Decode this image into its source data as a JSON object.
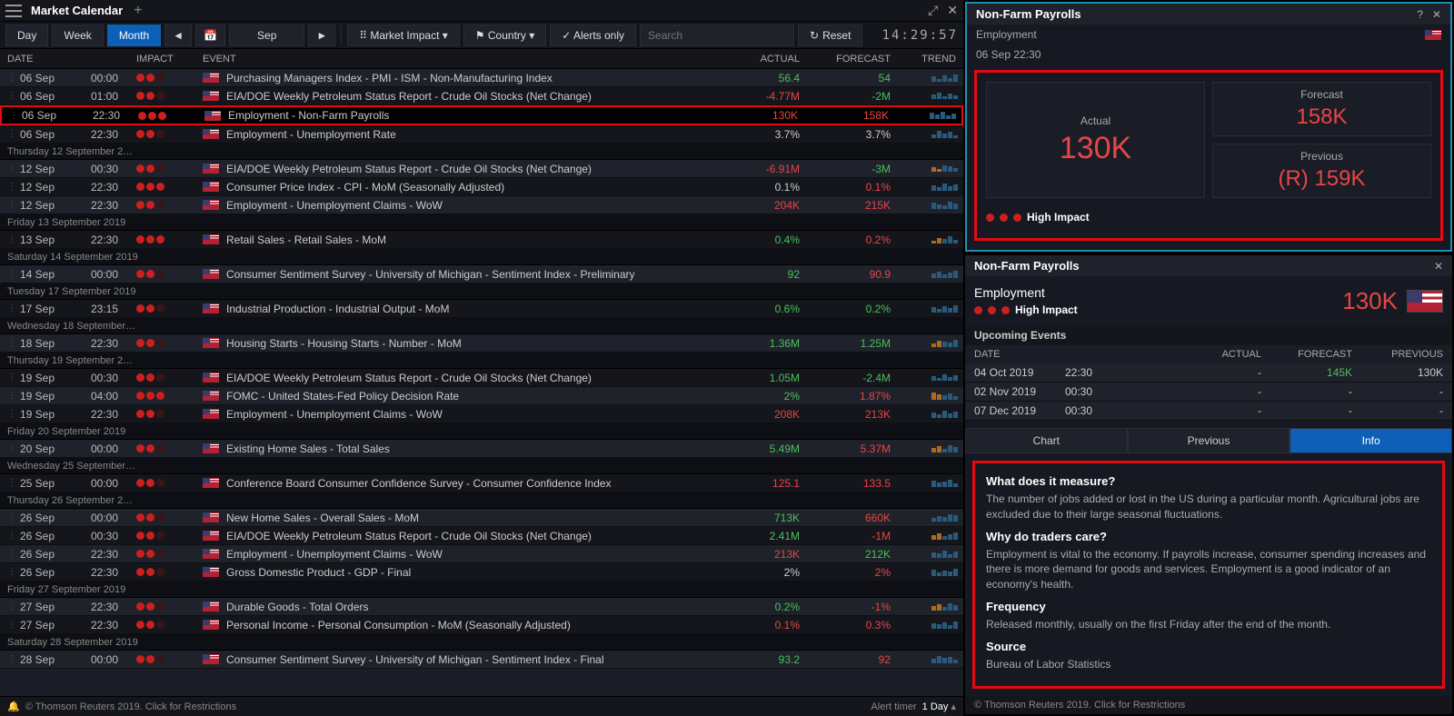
{
  "titlebar": {
    "title": "Market Calendar"
  },
  "toolbar": {
    "day": "Day",
    "week": "Week",
    "month": "Month",
    "monthval": "Sep",
    "impact": "Market Impact",
    "country": "Country",
    "alerts": "Alerts only",
    "search_ph": "Search",
    "reset": "Reset",
    "clock": "14:29:57"
  },
  "thead": {
    "date": "DATE",
    "impact": "IMPACT",
    "event": "EVENT",
    "actual": "ACTUAL",
    "forecast": "FORECAST",
    "trend": "TREND"
  },
  "rows": [
    {
      "date": "06 Sep",
      "time": "00:00",
      "impact": 2,
      "event": "Purchasing Managers Index - PMI - ISM - Non-Manufacturing Index",
      "actual": "56.4",
      "ac": "pos",
      "forecast": "54",
      "fc": "pos",
      "bars": [
        6,
        3,
        7,
        4,
        8
      ],
      "odd": true
    },
    {
      "date": "06 Sep",
      "time": "01:00",
      "impact": 2,
      "event": "EIA/DOE Weekly Petroleum Status Report - Crude Oil Stocks (Net Change)",
      "actual": "-4.77M",
      "ac": "neg",
      "forecast": "-2M",
      "fc": "pos",
      "bars": [
        5,
        7,
        3,
        6,
        4
      ],
      "odd": false
    },
    {
      "date": "06 Sep",
      "time": "22:30",
      "impact": 3,
      "event": "Employment - Non-Farm Payrolls",
      "actual": "130K",
      "ac": "neg",
      "forecast": "158K",
      "fc": "neg",
      "bars": [
        7,
        5,
        8,
        4,
        6
      ],
      "highlight": true
    },
    {
      "date": "06 Sep",
      "time": "22:30",
      "impact": 2,
      "event": "Employment - Unemployment Rate",
      "actual": "3.7%",
      "ac": "",
      "forecast": "3.7%",
      "fc": "",
      "bars": [
        4,
        8,
        5,
        7,
        3
      ],
      "odd": false
    },
    {
      "dayheader": "Thursday 12 September 2…"
    },
    {
      "date": "12 Sep",
      "time": "00:30",
      "impact": 2,
      "event": "EIA/DOE Weekly Petroleum Status Report - Crude Oil Stocks (Net Change)",
      "actual": "-6.91M",
      "ac": "neg",
      "forecast": "-3M",
      "fc": "pos",
      "bars": [
        5,
        3,
        7,
        6,
        4
      ],
      "odd": true,
      "obar": true
    },
    {
      "date": "12 Sep",
      "time": "22:30",
      "impact": 3,
      "event": "Consumer Price Index - CPI - MoM (Seasonally Adjusted)",
      "actual": "0.1%",
      "ac": "",
      "forecast": "0.1%",
      "fc": "neg",
      "bars": [
        6,
        4,
        8,
        5,
        7
      ],
      "odd": false
    },
    {
      "date": "12 Sep",
      "time": "22:30",
      "impact": 2,
      "event": "Employment - Unemployment Claims - WoW",
      "actual": "204K",
      "ac": "neg",
      "forecast": "215K",
      "fc": "neg",
      "bars": [
        7,
        5,
        4,
        8,
        6
      ],
      "odd": true
    },
    {
      "dayheader": "Friday 13 September 2019"
    },
    {
      "date": "13 Sep",
      "time": "22:30",
      "impact": 3,
      "event": "Retail Sales - Retail Sales - MoM",
      "actual": "0.4%",
      "ac": "pos",
      "forecast": "0.2%",
      "fc": "neg",
      "bars": [
        3,
        6,
        5,
        8,
        4
      ],
      "odd": false,
      "obar": true
    },
    {
      "dayheader": "Saturday 14 September 2019"
    },
    {
      "date": "14 Sep",
      "time": "00:00",
      "impact": 2,
      "event": "Consumer Sentiment Survey - University of Michigan - Sentiment Index - Preliminary",
      "actual": "92",
      "ac": "pos",
      "forecast": "90.9",
      "fc": "neg",
      "bars": [
        5,
        7,
        4,
        6,
        8
      ],
      "odd": true
    },
    {
      "dayheader": "Tuesday 17 September 2019"
    },
    {
      "date": "17 Sep",
      "time": "23:15",
      "impact": 2,
      "event": "Industrial Production - Industrial Output - MoM",
      "actual": "0.6%",
      "ac": "pos",
      "forecast": "0.2%",
      "fc": "pos",
      "bars": [
        6,
        4,
        7,
        5,
        8
      ],
      "odd": false
    },
    {
      "dayheader": "Wednesday 18 September…"
    },
    {
      "date": "18 Sep",
      "time": "22:30",
      "impact": 2,
      "event": "Housing Starts - Housing Starts - Number - MoM",
      "actual": "1.36M",
      "ac": "pos",
      "forecast": "1.25M",
      "fc": "pos",
      "bars": [
        4,
        7,
        6,
        5,
        8
      ],
      "odd": true,
      "obar": true
    },
    {
      "dayheader": "Thursday 19 September 2…"
    },
    {
      "date": "19 Sep",
      "time": "00:30",
      "impact": 2,
      "event": "EIA/DOE Weekly Petroleum Status Report - Crude Oil Stocks (Net Change)",
      "actual": "1.05M",
      "ac": "pos",
      "forecast": "-2.4M",
      "fc": "pos",
      "bars": [
        5,
        3,
        7,
        4,
        6
      ],
      "odd": false
    },
    {
      "date": "19 Sep",
      "time": "04:00",
      "impact": 3,
      "event": "FOMC - United States-Fed Policy Decision Rate",
      "actual": "2%",
      "ac": "pos",
      "forecast": "1.87%",
      "fc": "neg",
      "bars": [
        8,
        6,
        5,
        7,
        4
      ],
      "odd": true,
      "obar": true
    },
    {
      "date": "19 Sep",
      "time": "22:30",
      "impact": 2,
      "event": "Employment - Unemployment Claims - WoW",
      "actual": "208K",
      "ac": "neg",
      "forecast": "213K",
      "fc": "neg",
      "bars": [
        6,
        4,
        8,
        5,
        7
      ],
      "odd": false
    },
    {
      "dayheader": "Friday 20 September 2019"
    },
    {
      "date": "20 Sep",
      "time": "00:00",
      "impact": 2,
      "event": "Existing Home Sales - Total Sales",
      "actual": "5.49M",
      "ac": "pos",
      "forecast": "5.37M",
      "fc": "neg",
      "bars": [
        5,
        7,
        4,
        8,
        6
      ],
      "odd": true,
      "obar": true
    },
    {
      "dayheader": "Wednesday 25 September…"
    },
    {
      "date": "25 Sep",
      "time": "00:00",
      "impact": 2,
      "event": "Conference Board Consumer Confidence Survey - Consumer Confidence Index",
      "actual": "125.1",
      "ac": "neg",
      "forecast": "133.5",
      "fc": "neg",
      "bars": [
        7,
        5,
        6,
        8,
        4
      ],
      "odd": false
    },
    {
      "dayheader": "Thursday 26 September 2…"
    },
    {
      "date": "26 Sep",
      "time": "00:00",
      "impact": 2,
      "event": "New Home Sales - Overall Sales - MoM",
      "actual": "713K",
      "ac": "pos",
      "forecast": "660K",
      "fc": "neg",
      "bars": [
        4,
        6,
        5,
        8,
        7
      ],
      "odd": true
    },
    {
      "date": "26 Sep",
      "time": "00:30",
      "impact": 2,
      "event": "EIA/DOE Weekly Petroleum Status Report - Crude Oil Stocks (Net Change)",
      "actual": "2.41M",
      "ac": "pos",
      "forecast": "-1M",
      "fc": "neg",
      "bars": [
        5,
        7,
        4,
        6,
        8
      ],
      "odd": false,
      "obar": true
    },
    {
      "date": "26 Sep",
      "time": "22:30",
      "impact": 2,
      "event": "Employment - Unemployment Claims - WoW",
      "actual": "213K",
      "ac": "neg",
      "forecast": "212K",
      "fc": "pos",
      "bars": [
        6,
        5,
        8,
        4,
        7
      ],
      "odd": true
    },
    {
      "date": "26 Sep",
      "time": "22:30",
      "impact": 2,
      "event": "Gross Domestic Product - GDP - Final",
      "actual": "2%",
      "ac": "",
      "forecast": "2%",
      "fc": "neg",
      "bars": [
        7,
        4,
        6,
        5,
        8
      ],
      "odd": false
    },
    {
      "dayheader": "Friday 27 September 2019"
    },
    {
      "date": "27 Sep",
      "time": "22:30",
      "impact": 2,
      "event": "Durable Goods - Total Orders",
      "actual": "0.2%",
      "ac": "pos",
      "forecast": "-1%",
      "fc": "neg",
      "bars": [
        5,
        7,
        4,
        8,
        6
      ],
      "odd": true,
      "obar": true
    },
    {
      "date": "27 Sep",
      "time": "22:30",
      "impact": 2,
      "event": "Personal Income - Personal Consumption - MoM (Seasonally Adjusted)",
      "actual": "0.1%",
      "ac": "neg",
      "forecast": "0.3%",
      "fc": "neg",
      "bars": [
        6,
        5,
        7,
        4,
        8
      ],
      "odd": false
    },
    {
      "dayheader": "Saturday 28 September 2019"
    },
    {
      "date": "28 Sep",
      "time": "00:00",
      "impact": 2,
      "event": "Consumer Sentiment Survey - University of Michigan - Sentiment Index - Final",
      "actual": "93.2",
      "ac": "pos",
      "forecast": "92",
      "fc": "neg",
      "bars": [
        5,
        8,
        6,
        7,
        4
      ],
      "odd": true
    }
  ],
  "footer": {
    "copy": "© Thomson Reuters 2019. Click for Restrictions",
    "alert": "Alert timer",
    "day": "1 Day"
  },
  "panel1": {
    "title": "Non-Farm Payrolls",
    "sub1": "Employment",
    "sub2": "06 Sep 22:30",
    "actual_lbl": "Actual",
    "actual": "130K",
    "forecast_lbl": "Forecast",
    "forecast": "158K",
    "previous_lbl": "Previous",
    "previous": "(R) 159K",
    "impact": "High Impact"
  },
  "panel2": {
    "title": "Non-Farm Payrolls",
    "sub": "Employment",
    "impact": "High Impact",
    "val": "130K",
    "upcoming_hdr": "Upcoming Events",
    "uh": {
      "date": "DATE",
      "actual": "ACTUAL",
      "forecast": "FORECAST",
      "previous": "PREVIOUS"
    },
    "upcoming": [
      {
        "date": "04 Oct 2019",
        "time": "22:30",
        "actual": "-",
        "forecast": "145K",
        "fc": "pos",
        "previous": "130K"
      },
      {
        "date": "02 Nov 2019",
        "time": "00:30",
        "actual": "-",
        "forecast": "-",
        "previous": "-"
      },
      {
        "date": "07 Dec 2019",
        "time": "00:30",
        "actual": "-",
        "forecast": "-",
        "previous": "-"
      }
    ],
    "tabs": {
      "chart": "Chart",
      "previous": "Previous",
      "info": "Info"
    },
    "info": {
      "q1": "What does it measure?",
      "a1": "The number of jobs added or lost in the US during a particular month. Agricultural jobs are excluded due to their large seasonal fluctuations.",
      "q2": "Why do traders care?",
      "a2": "Employment is vital to the economy. If payrolls increase, consumer spending increases and there is more demand for goods and services. Employment is a good indicator of an economy's health.",
      "q3": "Frequency",
      "a3": "Released monthly, usually on the first Friday after the end of the month.",
      "q4": "Source",
      "a4": "Bureau of Labor Statistics"
    },
    "copy": "© Thomson Reuters 2019. Click for Restrictions"
  }
}
